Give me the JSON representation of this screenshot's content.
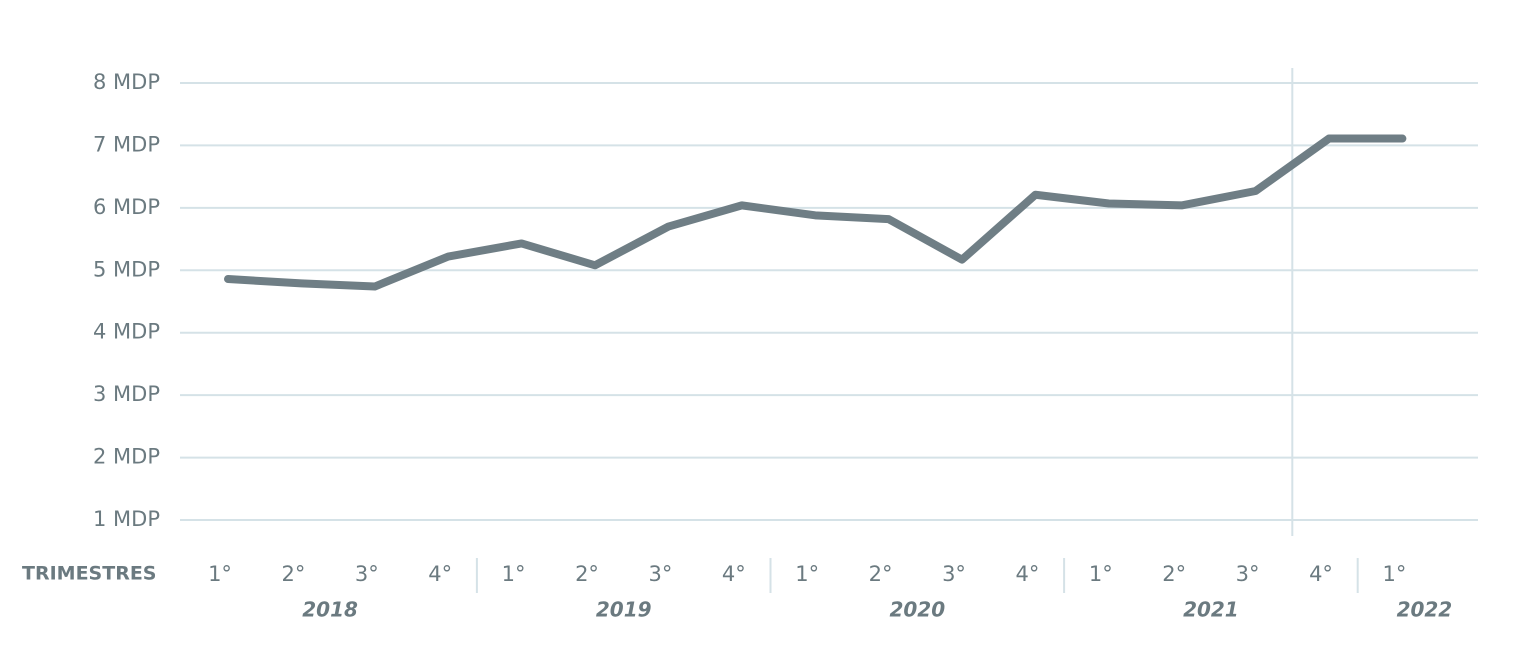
{
  "chart_data": {
    "type": "line",
    "x_axis_label": "TRIMESTRES",
    "categories": [
      "1°",
      "2°",
      "3°",
      "4°",
      "1°",
      "2°",
      "3°",
      "4°",
      "1°",
      "2°",
      "3°",
      "4°",
      "1°",
      "2°",
      "3°",
      "4°",
      "1°"
    ],
    "year_labels": [
      "2018",
      "2019",
      "2020",
      "2021",
      "2022"
    ],
    "series": [
      {
        "color": "#6f7e85",
        "values": [
          4.86,
          4.79,
          4.74,
          5.22,
          5.43,
          5.08,
          5.7,
          6.04,
          5.88,
          5.82,
          5.17,
          6.21,
          6.07,
          6.04,
          6.27,
          7.11,
          7.11
        ]
      }
    ],
    "ylim": [
      1,
      8
    ],
    "yticks": [
      {
        "value": 1,
        "label": "1 MDP"
      },
      {
        "value": 2,
        "label": "2 MDP"
      },
      {
        "value": 3,
        "label": "3 MDP"
      },
      {
        "value": 4,
        "label": "4 MDP"
      },
      {
        "value": 5,
        "label": "5 MDP"
      },
      {
        "value": 6,
        "label": "6 MDP"
      },
      {
        "value": 7,
        "label": "7 MDP"
      },
      {
        "value": 8,
        "label": "8 MDP"
      }
    ],
    "grid": true
  }
}
